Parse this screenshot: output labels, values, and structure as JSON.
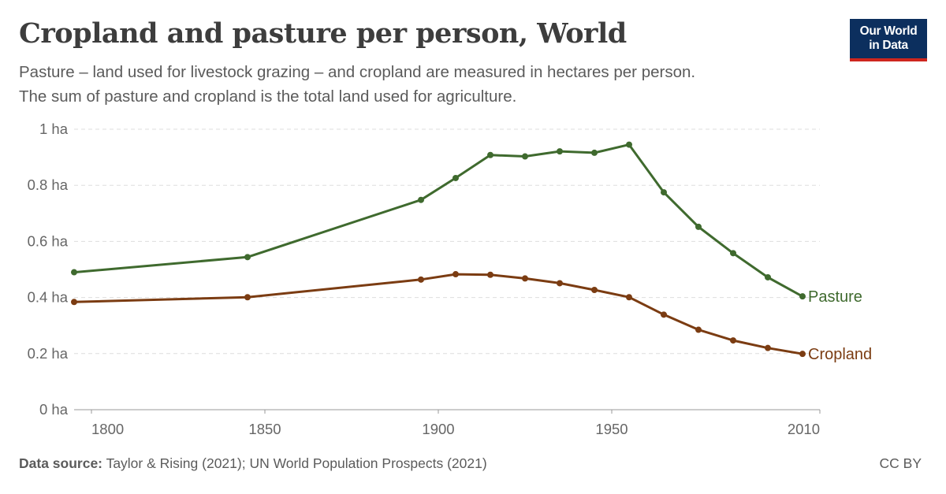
{
  "header": {
    "title": "Cropland and pasture per person, World",
    "subtitle_line1": "Pasture – land used for livestock grazing – and cropland are measured in hectares per person.",
    "subtitle_line2": "The sum of pasture and cropland is the total land used for agriculture."
  },
  "logo": {
    "line1": "Our World",
    "line2": "in Data",
    "bg_color": "#0c2f5e",
    "accent_color": "#ce261e"
  },
  "footer": {
    "source_label": "Data source:",
    "source_text": "Taylor & Rising (2021); UN World Population Prospects (2021)",
    "license": "CC BY"
  },
  "chart_data": {
    "type": "line",
    "title": "Cropland and pasture per person, World",
    "xlabel": "",
    "ylabel": "",
    "xlim": [
      1795,
      2010
    ],
    "ylim": [
      0,
      1
    ],
    "x_ticks": [
      1800,
      1850,
      1900,
      1950,
      2010
    ],
    "y_ticks": [
      {
        "value": 0,
        "label": "0 ha"
      },
      {
        "value": 0.2,
        "label": "0.2 ha"
      },
      {
        "value": 0.4,
        "label": "0.4 ha"
      },
      {
        "value": 0.6,
        "label": "0.6 ha"
      },
      {
        "value": 0.8,
        "label": "0.8 ha"
      },
      {
        "value": 1,
        "label": "1 ha"
      }
    ],
    "grid": "horizontal dashed",
    "legend": "inline labels at line ends (right)",
    "series": [
      {
        "name": "Pasture",
        "color": "#3f6a2e",
        "x": [
          1795,
          1845,
          1895,
          1905,
          1915,
          1925,
          1935,
          1945,
          1955,
          1965,
          1975,
          1985,
          1995,
          2005
        ],
        "values": [
          0.49,
          0.544,
          0.748,
          0.826,
          0.908,
          0.903,
          0.921,
          0.916,
          0.945,
          0.775,
          0.652,
          0.558,
          0.472,
          0.404
        ]
      },
      {
        "name": "Cropland",
        "color": "#7b3c12",
        "x": [
          1795,
          1845,
          1895,
          1905,
          1915,
          1925,
          1935,
          1945,
          1955,
          1965,
          1975,
          1985,
          1995,
          2005
        ],
        "values": [
          0.384,
          0.401,
          0.464,
          0.483,
          0.481,
          0.468,
          0.451,
          0.427,
          0.401,
          0.339,
          0.285,
          0.247,
          0.22,
          0.199
        ]
      }
    ]
  }
}
